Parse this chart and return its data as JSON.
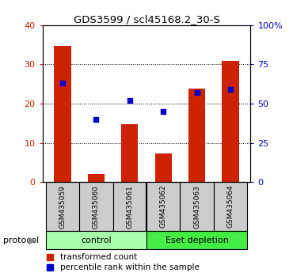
{
  "title": "GDS3599 / scl45168.2_30-S",
  "samples": [
    "GSM435059",
    "GSM435060",
    "GSM435061",
    "GSM435062",
    "GSM435063",
    "GSM435064"
  ],
  "transformed_counts": [
    34.7,
    2.0,
    14.7,
    7.2,
    23.8,
    30.8
  ],
  "percentile_ranks": [
    63.0,
    40.0,
    52.0,
    45.0,
    57.0,
    59.0
  ],
  "ylim_left": [
    0,
    40
  ],
  "ylim_right": [
    0,
    100
  ],
  "yticks_left": [
    0,
    10,
    20,
    30,
    40
  ],
  "yticks_right": [
    0,
    25,
    50,
    75,
    100
  ],
  "ytick_labels_right": [
    "0",
    "25",
    "50",
    "75",
    "100%"
  ],
  "bar_color": "#cc2200",
  "scatter_color": "#0000cc",
  "bar_width": 0.5,
  "control_label": "control",
  "esetdepletion_label": "Eset depletion",
  "protocol_label": "protocol",
  "legend_bar_label": "transformed count",
  "legend_scatter_label": "percentile rank within the sample",
  "control_color": "#aaffaa",
  "esetdepletion_color": "#44ee44",
  "bg_color": "#ffffff",
  "tick_area_color": "#cccccc"
}
